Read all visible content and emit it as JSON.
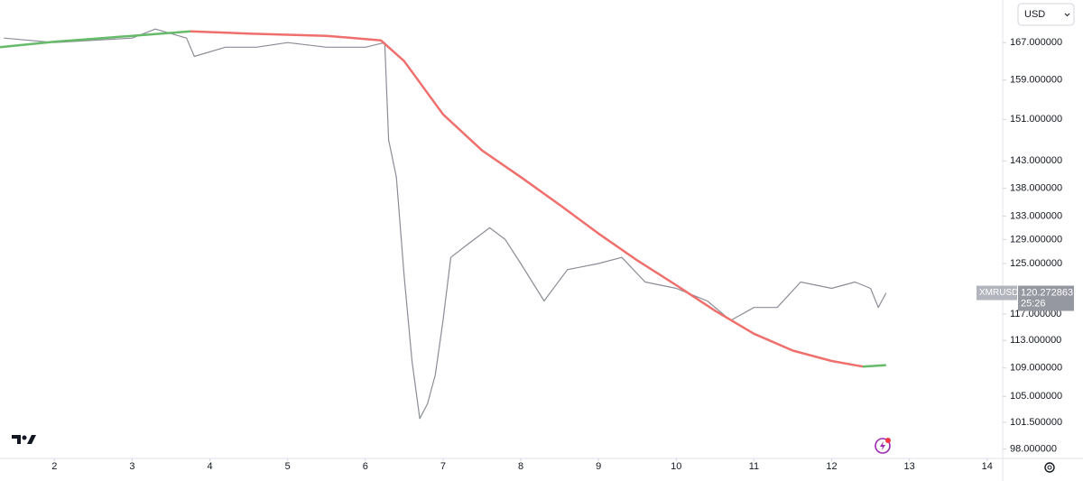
{
  "chart_data": {
    "type": "line",
    "currency": "USD",
    "symbol": "XMRUSD",
    "last_price": 120.272863,
    "countdown": "25:26",
    "log_scale": true,
    "grid": false,
    "xlim": [
      1.3,
      14.2
    ],
    "xticks": [
      2,
      3,
      4,
      5,
      6,
      7,
      8,
      9,
      10,
      11,
      12,
      13,
      14
    ],
    "ylim": [
      96.8,
      176.6
    ],
    "yticks": [
      {
        "value": 167,
        "label": "167.000000"
      },
      {
        "value": 159,
        "label": "159.000000"
      },
      {
        "value": 151,
        "label": "151.000000"
      },
      {
        "value": 143,
        "label": "143.000000"
      },
      {
        "value": 138,
        "label": "138.000000"
      },
      {
        "value": 133,
        "label": "133.000000"
      },
      {
        "value": 129,
        "label": "129.000000"
      },
      {
        "value": 125,
        "label": "125.000000"
      },
      {
        "value": 117,
        "label": "117.000000"
      },
      {
        "value": 113,
        "label": "113.000000"
      },
      {
        "value": 109,
        "label": "109.000000"
      },
      {
        "value": 105,
        "label": "105.000000"
      },
      {
        "value": 101.5,
        "label": "101.500000"
      },
      {
        "value": 98,
        "label": "98.000000"
      }
    ],
    "series": [
      {
        "color": "#8a8d96",
        "x": [
          1.35,
          2.0,
          2.5,
          3.0,
          3.3,
          3.7,
          3.8,
          4.2,
          4.6,
          5.0,
          5.5,
          6.0,
          6.25,
          6.3,
          6.4,
          6.5,
          6.6,
          6.7,
          6.8,
          6.9,
          7.0,
          7.1,
          7.3,
          7.6,
          7.8,
          8.0,
          8.3,
          8.6,
          9.0,
          9.3,
          9.6,
          10.0,
          10.4,
          10.7,
          11.0,
          11.3,
          11.6,
          12.0,
          12.3,
          12.5,
          12.6,
          12.7
        ],
        "values": [
          168,
          167,
          167.5,
          168,
          170,
          168,
          164,
          166,
          166,
          167,
          166,
          166,
          167,
          147,
          140,
          123,
          110,
          102,
          104,
          108,
          116,
          126,
          128,
          131,
          129,
          125,
          119,
          124,
          125,
          126,
          122,
          121,
          119,
          116,
          118,
          118,
          122,
          121,
          122,
          121,
          118,
          120.27
        ]
      },
      {
        "color": "#66bb6a",
        "x": [
          1.3,
          2.0,
          3.0,
          3.75
        ],
        "values": [
          166,
          167.2,
          168.5,
          169.5
        ]
      },
      {
        "color": "#ef6f6c",
        "x": [
          3.75,
          4.5,
          5.5,
          6.2,
          6.5,
          7.0,
          7.5,
          8.0,
          8.5,
          9.0,
          9.5,
          10.0,
          10.5,
          11.0,
          11.5,
          12.0,
          12.4
        ],
        "values": [
          169.5,
          169,
          168.5,
          167.5,
          163,
          152,
          145,
          140,
          135,
          130,
          125.5,
          121.5,
          117.5,
          114,
          111.5,
          110,
          109.2
        ]
      },
      {
        "color": "#66bb6a",
        "x": [
          12.4,
          12.7
        ],
        "values": [
          109.2,
          109.4
        ]
      }
    ]
  }
}
